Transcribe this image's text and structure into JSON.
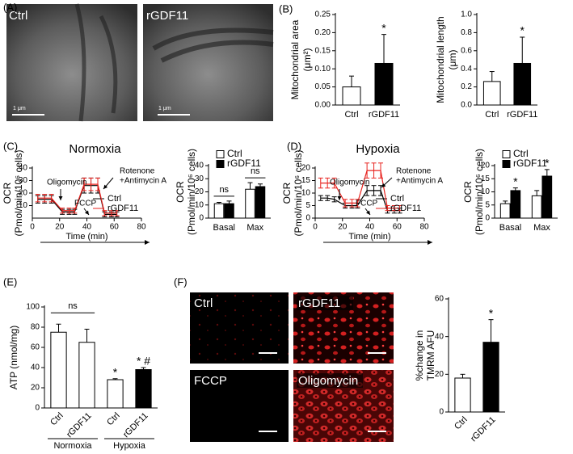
{
  "panel_labels": [
    "(A)",
    "(B)",
    "(C)",
    "(D)",
    "(E)",
    "(F)"
  ],
  "panel_a": {
    "labels": [
      "Ctrl",
      "rGDF11"
    ],
    "scale_labels": [
      "1 μm",
      "1 μm"
    ]
  },
  "panel_f": {
    "labels": [
      "Ctrl",
      "rGDF11",
      "FCCP",
      "Oligomycin"
    ]
  },
  "chart_data": [
    {
      "type": "bar",
      "ylabel": [
        "Mitochondrial area",
        "(μm²)"
      ],
      "categories": [
        "Ctrl",
        "rGDF11"
      ],
      "values": [
        0.05,
        0.115
      ],
      "errors": [
        0.03,
        0.08
      ],
      "colors": [
        "#ffffff",
        "#000000"
      ],
      "value_annotations": [
        null,
        "*"
      ],
      "ylim": [
        0,
        0.25
      ],
      "yticks": [
        {
          "value": 0,
          "label": "0.00"
        },
        {
          "value": 0.05,
          "label": "0.05"
        },
        {
          "value": 0.1,
          "label": "0.10"
        },
        {
          "value": 0.15,
          "label": "0.15"
        },
        {
          "value": 0.2,
          "label": "0.20"
        },
        {
          "value": 0.25,
          "label": "0.25"
        }
      ]
    },
    {
      "type": "bar",
      "ylabel": [
        "Mitochondrial length",
        "(μm)"
      ],
      "categories": [
        "Ctrl",
        "rGDF11"
      ],
      "values": [
        0.26,
        0.46
      ],
      "errors": [
        0.11,
        0.29
      ],
      "colors": [
        "#ffffff",
        "#000000"
      ],
      "value_annotations": [
        null,
        "*"
      ],
      "ylim": [
        0,
        1.0
      ],
      "yticks": [
        {
          "value": 0,
          "label": "0.0"
        },
        {
          "value": 0.2,
          "label": "0.2"
        },
        {
          "value": 0.4,
          "label": "0.4"
        },
        {
          "value": 0.6,
          "label": "0.6"
        },
        {
          "value": 0.8,
          "label": "0.8"
        },
        {
          "value": 1,
          "label": "1.0"
        }
      ]
    },
    {
      "type": "line",
      "title": "Normoxia",
      "ylabel": [
        "OCR",
        "(Pmol/min/10⁶ cells)"
      ],
      "xlabel": "Time (min)",
      "annotations": [
        "Oligomycin",
        "FCCP",
        "Rotenone",
        "+Antimycin A"
      ],
      "x": [
        4,
        9,
        14,
        22,
        27,
        31,
        38,
        43,
        48,
        53,
        58,
        62
      ],
      "series": [
        {
          "name": "Ctrl",
          "color": "#000000",
          "values": [
            15,
            15,
            15,
            5,
            5,
            5,
            26,
            26,
            26,
            3,
            3,
            3
          ],
          "errors": [
            3,
            3,
            3,
            2,
            2,
            2,
            6,
            6,
            6,
            2,
            2,
            2
          ]
        },
        {
          "name": "rGDF11",
          "color": "#e8231f",
          "values": [
            16,
            16,
            16,
            6,
            6,
            6,
            27,
            27,
            27,
            4,
            4,
            4
          ],
          "errors": [
            3,
            3,
            3,
            2,
            2,
            2,
            5,
            5,
            5,
            2,
            2,
            2
          ]
        }
      ],
      "xlim": [
        0,
        80
      ],
      "xticks": [
        0,
        20,
        40,
        60,
        80
      ],
      "ylim": [
        0,
        40
      ],
      "yticks": [
        10,
        20,
        30,
        40
      ]
    },
    {
      "type": "bar",
      "ylabel": [
        "OCR",
        "(Pmol/min/10⁶ cells)"
      ],
      "categories": [
        "Basal",
        "Max"
      ],
      "series": [
        {
          "name": "Ctrl",
          "color": "#ffffff",
          "values": [
            11,
            22
          ],
          "errors": [
            1,
            5
          ]
        },
        {
          "name": "rGDF11",
          "color": "#000000",
          "values": [
            11,
            24
          ],
          "errors": [
            2,
            2
          ]
        }
      ],
      "group_annotations": [
        "ns",
        "ns"
      ],
      "ylim": [
        0,
        40
      ],
      "yticks": [
        0,
        10,
        20,
        30,
        40
      ]
    },
    {
      "type": "line",
      "title": "Hypoxia",
      "ylabel": [
        "OCR",
        "(Pmol/min/10⁶ cells)"
      ],
      "xlabel": "Time (min)",
      "annotations": [
        "Oligomycin",
        "FCCP",
        "Rotenone",
        "+Antimycin A"
      ],
      "x": [
        4,
        9,
        14,
        22,
        27,
        31,
        38,
        43,
        48,
        53,
        58,
        62
      ],
      "series": [
        {
          "name": "Ctrl",
          "color": "#000000",
          "values": [
            8,
            8,
            7.5,
            5,
            5,
            5,
            11,
            11,
            11,
            3,
            3,
            3
          ],
          "errors": [
            1,
            1,
            1,
            1,
            1,
            1,
            2,
            2,
            2,
            1,
            1,
            1
          ]
        },
        {
          "name": "rGDF11",
          "color": "#e8231f",
          "values": [
            14,
            14,
            14,
            6,
            6,
            6,
            19,
            19,
            19,
            4,
            4,
            4
          ],
          "errors": [
            2,
            2,
            2,
            1.5,
            1.5,
            1.5,
            3,
            3,
            3,
            1,
            1,
            1
          ]
        }
      ],
      "xlim": [
        0,
        80
      ],
      "xticks": [
        0,
        20,
        40,
        60,
        80
      ],
      "ylim": [
        0,
        20
      ],
      "yticks": [
        0,
        5,
        10,
        15,
        20
      ]
    },
    {
      "type": "bar",
      "ylabel": [
        "OCR",
        "(Pmol/min/10⁶ cells)"
      ],
      "categories": [
        "Basal",
        "Max"
      ],
      "series": [
        {
          "name": "Ctrl",
          "color": "#ffffff",
          "values": [
            5.5,
            8.5
          ],
          "errors": [
            1,
            2
          ]
        },
        {
          "name": "rGDF11",
          "color": "#000000",
          "values": [
            10.5,
            16
          ],
          "errors": [
            1,
            2.5
          ],
          "value_annotations": [
            "*",
            "*"
          ]
        }
      ],
      "ylim": [
        0,
        20
      ],
      "yticks": [
        0,
        5,
        10,
        15,
        20
      ]
    },
    {
      "type": "bar",
      "ylabel": [
        "ATP (nmol/mg)"
      ],
      "categories": [
        "Ctrl",
        "rGDF11",
        "Ctrl",
        "rGDF11"
      ],
      "values": [
        75,
        65,
        28,
        38
      ],
      "errors": [
        8,
        13,
        1,
        2
      ],
      "colors": [
        "#ffffff",
        "#ffffff",
        "#ffffff",
        "#000000"
      ],
      "value_annotations": [
        null,
        null,
        "*",
        "* #"
      ],
      "group_labels": [
        "Normoxia",
        "Hypoxia"
      ],
      "bracket_annotations": [
        "ns",
        null
      ],
      "ylim": [
        0,
        100
      ],
      "yticks": [
        0,
        20,
        40,
        60,
        80,
        100
      ]
    },
    {
      "type": "bar",
      "ylabel": [
        "%change in",
        "TMRM AFU"
      ],
      "categories": [
        "Ctrl",
        "rGDF11"
      ],
      "values": [
        18,
        37
      ],
      "errors": [
        2,
        12
      ],
      "colors": [
        "#ffffff",
        "#000000"
      ],
      "value_annotations": [
        null,
        "*"
      ],
      "ylim": [
        0,
        60
      ],
      "yticks": [
        0,
        20,
        40,
        60
      ]
    }
  ]
}
